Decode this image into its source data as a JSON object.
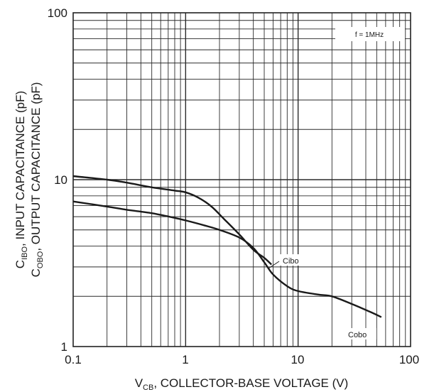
{
  "chart_data": {
    "type": "line",
    "x_scale": "log",
    "y_scale": "log",
    "xlim": [
      0.1,
      100
    ],
    "ylim": [
      1,
      100
    ],
    "x_tick_labels": [
      "0.1",
      "1",
      "10",
      "100"
    ],
    "y_tick_labels": [
      "1",
      "10",
      "100"
    ],
    "xlabel": {
      "prefix": "V",
      "sub": "CB",
      "suffix": ", COLLECTOR-BASE VOLTAGE (V)"
    },
    "ylabel_lines": [
      {
        "prefix": "C",
        "sub": "IBO",
        "suffix": ", INPUT CAPACITANCE (pF)"
      },
      {
        "prefix": "C",
        "sub": "OBO",
        "suffix": ", OUTPUT CAPACITANCE (pF)"
      }
    ],
    "annotation": "f = 1MHz",
    "grid": true,
    "series": [
      {
        "name": "Cibo",
        "x": [
          0.1,
          0.2,
          0.3,
          0.5,
          0.8,
          1.0,
          1.3,
          1.7,
          2.2,
          3.0,
          4.0,
          5.0,
          5.8
        ],
        "y": [
          10.5,
          10.0,
          9.6,
          9.0,
          8.6,
          8.4,
          7.8,
          6.9,
          5.8,
          4.7,
          3.8,
          3.4,
          3.1
        ]
      },
      {
        "name": "Cobo",
        "x": [
          0.1,
          0.2,
          0.3,
          0.5,
          0.8,
          1.0,
          1.5,
          2.0,
          3.0,
          4.0,
          5.0,
          6.0,
          8.0,
          10.0,
          15.0,
          20.0,
          30.0,
          45.0,
          55.0
        ],
        "y": [
          7.4,
          6.9,
          6.6,
          6.3,
          5.9,
          5.7,
          5.3,
          5.0,
          4.5,
          3.9,
          3.2,
          2.7,
          2.3,
          2.15,
          2.05,
          2.0,
          1.8,
          1.6,
          1.5
        ]
      }
    ]
  }
}
